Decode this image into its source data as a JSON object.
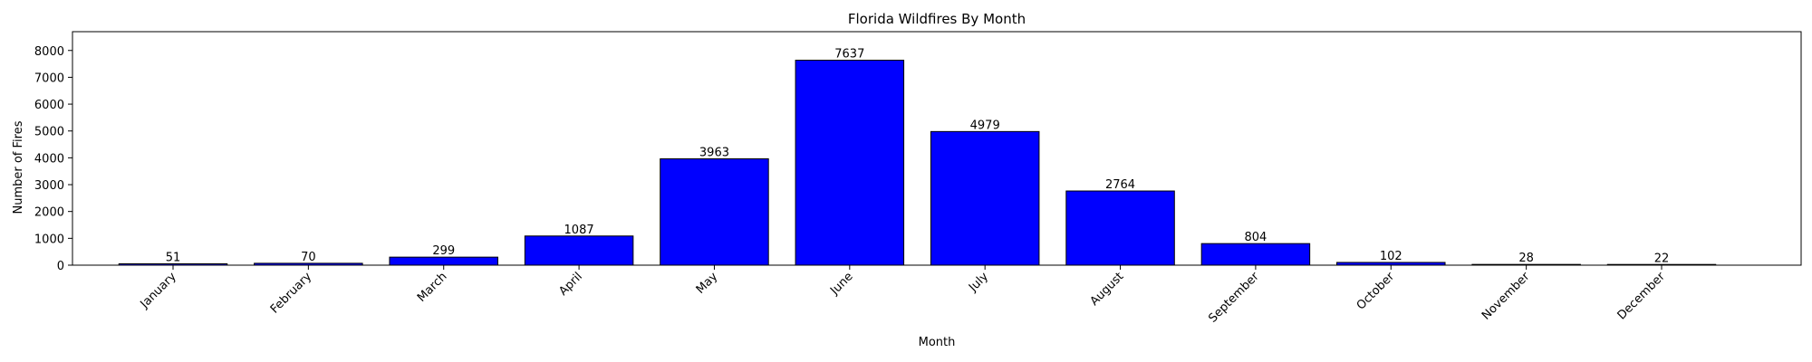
{
  "chart_data": {
    "type": "bar",
    "title": "Florida Wildfires By Month",
    "xlabel": "Month",
    "ylabel": "Number of Fires",
    "categories": [
      "January",
      "February",
      "March",
      "April",
      "May",
      "June",
      "July",
      "August",
      "September",
      "October",
      "November",
      "December"
    ],
    "values": [
      51,
      70,
      299,
      1087,
      3963,
      7637,
      4979,
      2764,
      804,
      102,
      28,
      22
    ],
    "ylim": [
      0,
      8700
    ],
    "yticks": [
      0,
      1000,
      2000,
      3000,
      4000,
      5000,
      6000,
      7000,
      8000
    ],
    "bar_color": "#0000ff",
    "bar_edge_color": "#000000",
    "grid": false,
    "legend": false
  }
}
